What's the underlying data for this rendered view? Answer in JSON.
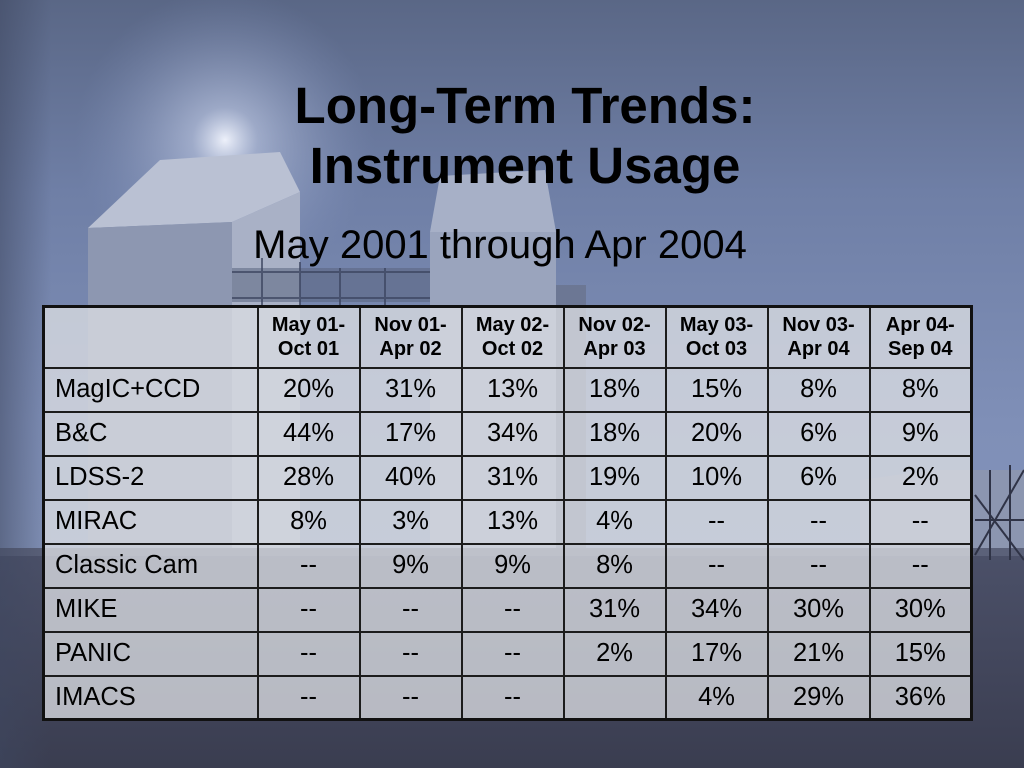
{
  "slide": {
    "title_line1": "Long-Term Trends:",
    "title_line2": "Instrument Usage",
    "subtitle": "May 2001 through Apr 2004"
  },
  "table": {
    "columns": [
      {
        "line1": "May 01-",
        "line2": "Oct 01"
      },
      {
        "line1": "Nov 01-",
        "line2": "Apr 02"
      },
      {
        "line1": "May 02-",
        "line2": "Oct 02"
      },
      {
        "line1": "Nov 02-",
        "line2": "Apr 03"
      },
      {
        "line1": "May 03-",
        "line2": "Oct 03"
      },
      {
        "line1": "Nov 03-",
        "line2": "Apr 04"
      },
      {
        "line1": "Apr 04-",
        "line2": "Sep 04"
      }
    ],
    "rows": [
      {
        "instrument": "MagIC+CCD",
        "values": [
          "20%",
          "31%",
          "13%",
          "18%",
          "15%",
          "8%",
          "8%"
        ]
      },
      {
        "instrument": "B&C",
        "values": [
          "44%",
          "17%",
          "34%",
          "18%",
          "20%",
          "6%",
          "9%"
        ]
      },
      {
        "instrument": "LDSS-2",
        "values": [
          "28%",
          "40%",
          "31%",
          "19%",
          "10%",
          "6%",
          "2%"
        ]
      },
      {
        "instrument": "MIRAC",
        "values": [
          "8%",
          "3%",
          "13%",
          "4%",
          "--",
          "--",
          "--"
        ]
      },
      {
        "instrument": "Classic Cam",
        "values": [
          "--",
          "9%",
          "9%",
          "8%",
          "--",
          "--",
          "--"
        ]
      },
      {
        "instrument": "MIKE",
        "values": [
          "--",
          "--",
          "--",
          "31%",
          "34%",
          "30%",
          "30%"
        ]
      },
      {
        "instrument": "PANIC",
        "values": [
          "--",
          "--",
          "--",
          "2%",
          "17%",
          "21%",
          "15%"
        ]
      },
      {
        "instrument": "IMACS",
        "values": [
          "--",
          "--",
          "--",
          "",
          "4%",
          "29%",
          "36%"
        ]
      }
    ]
  },
  "theme": {
    "text": "#000000",
    "grid_lines": "#1c1c1c",
    "cell_fill": "#dadce2"
  }
}
